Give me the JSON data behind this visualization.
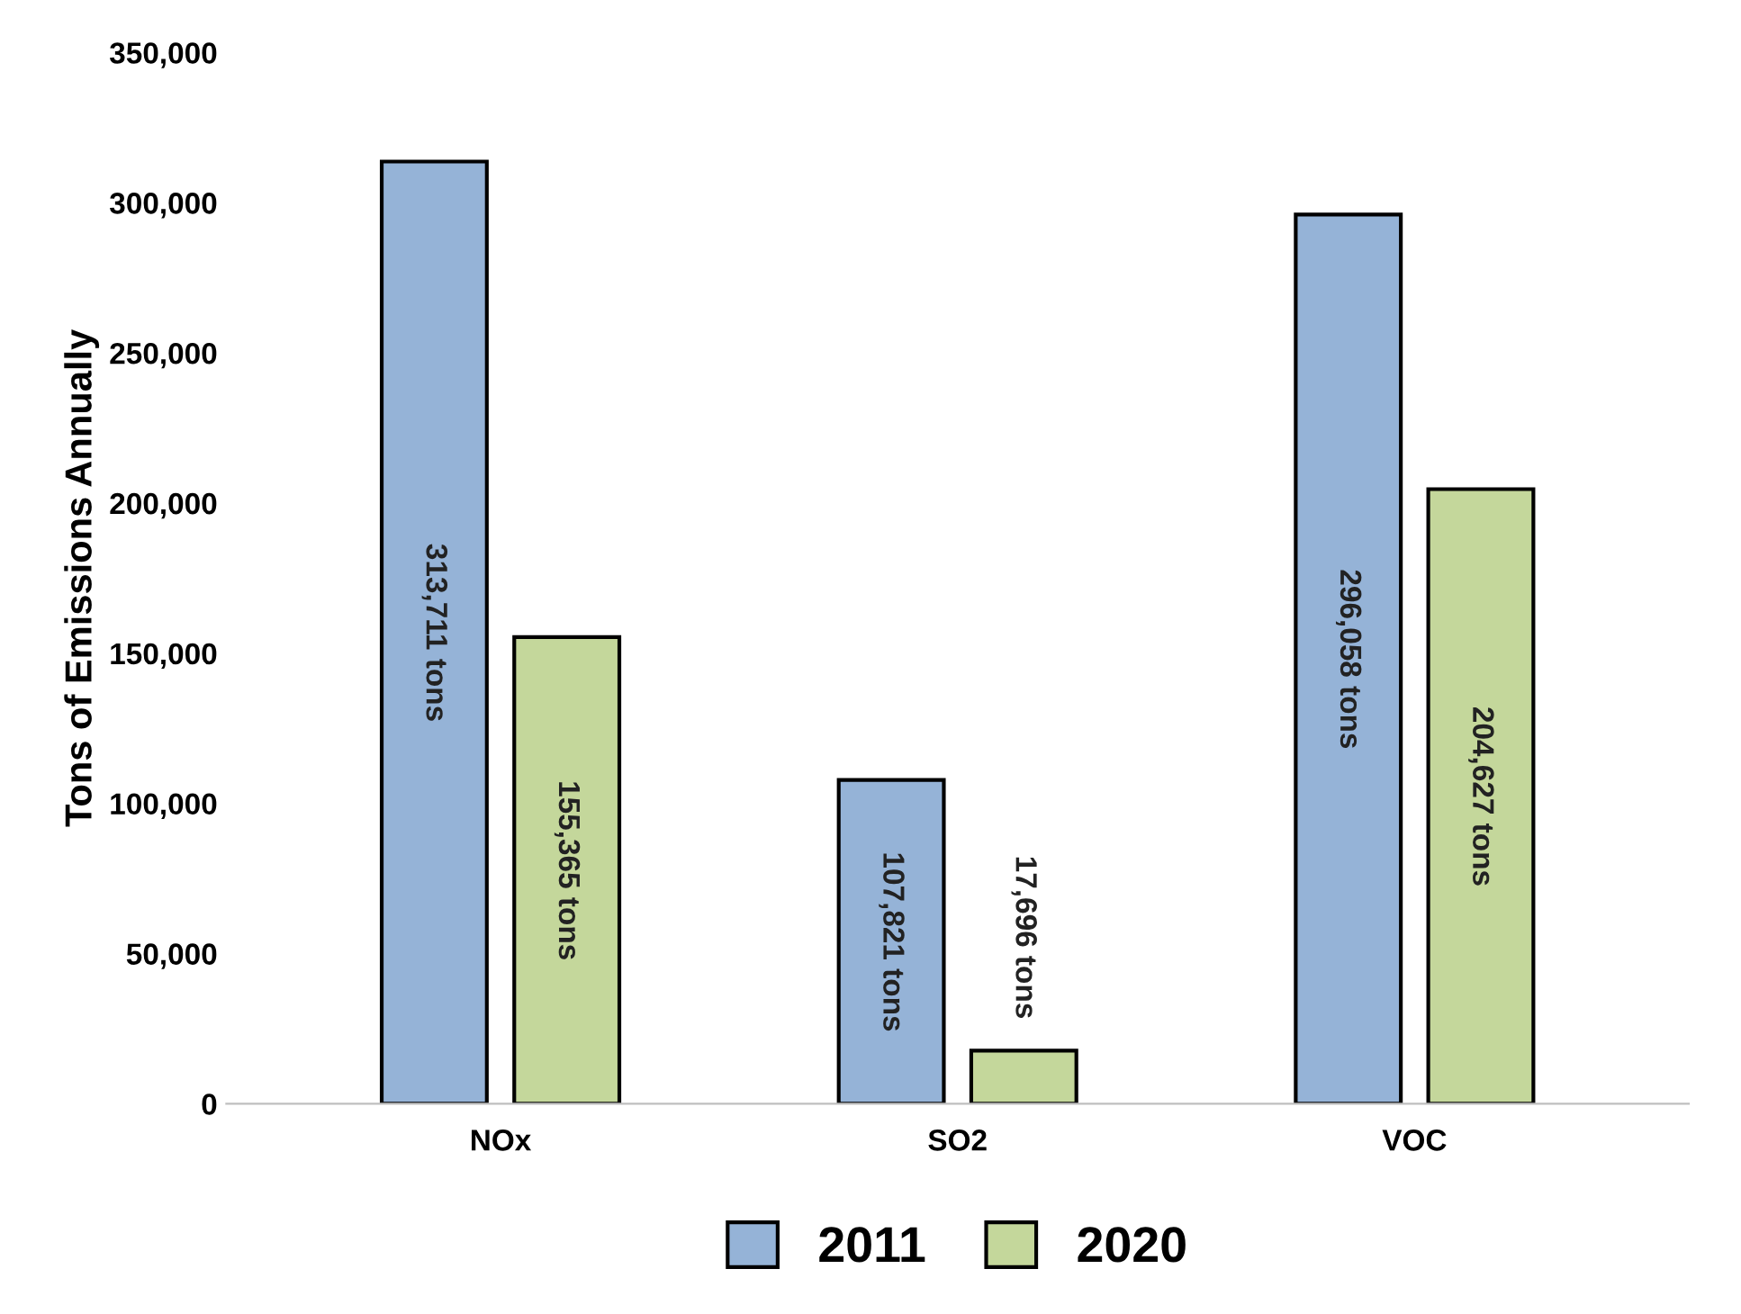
{
  "chart_data": {
    "type": "bar",
    "ylabel": "Tons of Emissions Annually",
    "categories": [
      "NOx",
      "SO2",
      "VOC"
    ],
    "series": [
      {
        "name": "2011",
        "color": "#95b3d7",
        "values": [
          313711,
          107821,
          296058
        ],
        "value_labels": [
          "313,711 tons",
          "107,821 tons",
          "296,058 tons"
        ]
      },
      {
        "name": "2020",
        "color": "#c4d79b",
        "values": [
          155365,
          17696,
          204627
        ],
        "value_labels": [
          "155,365 tons",
          "17,696 tons",
          "204,627 tons"
        ]
      }
    ],
    "ylim": [
      0,
      350000
    ],
    "yticks": [
      0,
      {
        "value": 50000,
        "label": "50,000"
      },
      {
        "value": 100000,
        "label": "100,000"
      },
      {
        "value": 150000,
        "label": "150,000"
      },
      {
        "value": 200000,
        "label": "200,000"
      },
      {
        "value": 250000,
        "label": "250,000"
      },
      {
        "value": 300000,
        "label": "300,000"
      },
      {
        "value": 350000,
        "label": "350,000"
      }
    ],
    "grid": false,
    "legend": "bottom"
  }
}
